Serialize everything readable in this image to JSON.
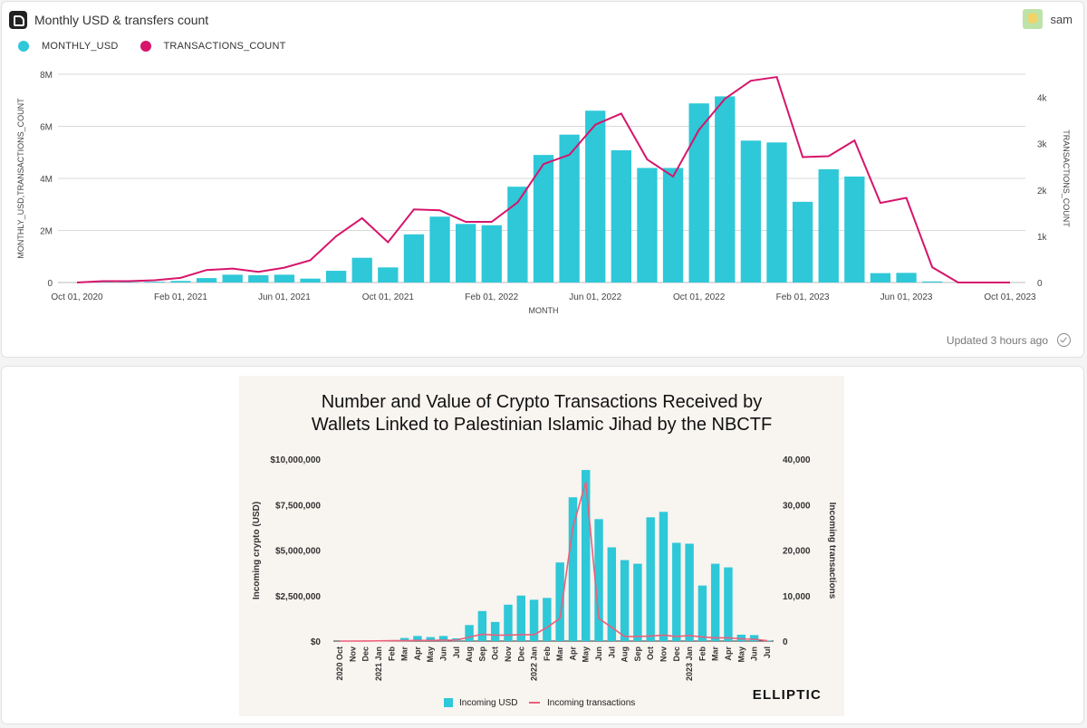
{
  "dashboard": {
    "title": "Monthly USD & transfers count",
    "user": "sam",
    "updated": "Updated 3 hours ago"
  },
  "colors": {
    "usd": "#2ec8d8",
    "tx": "#d6156b",
    "ellipticTx": "#ec5f7b",
    "ellipticBg": "#f8f4f0"
  },
  "chart_data": [
    {
      "type": "bar",
      "title": "Monthly USD & transfers count",
      "legend": [
        "MONTHLY_USD",
        "TRANSACTIONS_COUNT"
      ],
      "xlabel": "MONTH",
      "ylabel": "MONTHLY_USD,TRANSACTIONS_COUNT",
      "y2label": "TRANSACTIONS_COUNT",
      "ylim": [
        0,
        8000000
      ],
      "y2lim": [
        0,
        4500
      ],
      "yticks": [
        "0",
        "2M",
        "4M",
        "6M",
        "8M"
      ],
      "y2ticks": [
        "0",
        "1k",
        "2k",
        "3k",
        "4k"
      ],
      "xticks": [
        "Oct 01, 2020",
        "Feb 01, 2021",
        "Jun 01, 2021",
        "Oct 01, 2021",
        "Feb 01, 2022",
        "Jun 01, 2022",
        "Oct 01, 2022",
        "Feb 01, 2023",
        "Jun 01, 2023",
        "Oct 01, 2023"
      ],
      "months": [
        "2020-10",
        "2020-11",
        "2020-12",
        "2021-01",
        "2021-02",
        "2021-03",
        "2021-04",
        "2021-05",
        "2021-06",
        "2021-07",
        "2021-08",
        "2021-09",
        "2021-10",
        "2021-11",
        "2021-12",
        "2022-01",
        "2022-02",
        "2022-03",
        "2022-04",
        "2022-05",
        "2022-06",
        "2022-07",
        "2022-08",
        "2022-09",
        "2022-10",
        "2022-11",
        "2022-12",
        "2023-01",
        "2023-02",
        "2023-03",
        "2023-04",
        "2023-05",
        "2023-06",
        "2023-07",
        "2023-08",
        "2023-09",
        "2023-10"
      ],
      "series": [
        {
          "name": "MONTHLY_USD",
          "kind": "bar",
          "axis": "left",
          "values": [
            0,
            10000,
            15000,
            30000,
            60000,
            170000,
            300000,
            280000,
            300000,
            150000,
            450000,
            950000,
            580000,
            1850000,
            2530000,
            2250000,
            2200000,
            3680000,
            4900000,
            5680000,
            6600000,
            5080000,
            4400000,
            4400000,
            6880000,
            7150000,
            5450000,
            5380000,
            3100000,
            4350000,
            4070000,
            360000,
            370000,
            40000,
            0,
            0,
            0
          ]
        },
        {
          "name": "TRANSACTIONS_COUNT",
          "kind": "line",
          "axis": "right",
          "values": [
            0,
            30,
            30,
            50,
            100,
            270,
            300,
            230,
            320,
            480,
            1000,
            1390,
            870,
            1580,
            1560,
            1310,
            1310,
            1730,
            2560,
            2760,
            3410,
            3650,
            2660,
            2290,
            3300,
            3970,
            4360,
            4440,
            2710,
            2730,
            3070,
            1720,
            1830,
            330,
            0,
            0,
            0
          ]
        }
      ]
    },
    {
      "type": "bar",
      "title": "Number and Value of Crypto Transactions Received by Wallets Linked to Palestinian Islamic Jihad by the NBCTF",
      "title_lines": [
        "Number and Value of Crypto Transactions Received by",
        "Wallets Linked to Palestinian Islamic Jihad by the NBCTF"
      ],
      "legend": [
        "Incoming USD",
        "Incoming transactions"
      ],
      "brand": "ELLIPTIC",
      "ylabel": "Incoming crypto (USD)",
      "y2label": "Incoming transactions",
      "ylim": [
        0,
        10000000
      ],
      "y2lim": [
        0,
        40000
      ],
      "yticks": [
        "$0",
        "$2,500,000",
        "$5,000,000",
        "$7,500,000",
        "$10,000,000"
      ],
      "y2ticks": [
        "0",
        "10,000",
        "20,000",
        "30,000",
        "40,000"
      ],
      "categories": [
        "2020 Oct",
        "Nov",
        "Dec",
        "2021 Jan",
        "Feb",
        "Mar",
        "Apr",
        "May",
        "Jun",
        "Jul",
        "Aug",
        "Sep",
        "Oct",
        "Nov",
        "Dec",
        "2022 Jan",
        "Feb",
        "Mar",
        "Apr",
        "May",
        "Jun",
        "Jul",
        "Aug",
        "Sep",
        "Oct",
        "Nov",
        "Dec",
        "2023 Jan",
        "Feb",
        "Mar",
        "Apr",
        "May",
        "Jun",
        "Jul"
      ],
      "series": [
        {
          "name": "Incoming USD",
          "kind": "bar",
          "axis": "left",
          "values": [
            0,
            0,
            10000,
            20000,
            40000,
            170000,
            280000,
            220000,
            280000,
            150000,
            880000,
            1650000,
            1050000,
            2000000,
            2500000,
            2270000,
            2370000,
            4320000,
            7900000,
            9400000,
            6700000,
            5150000,
            4450000,
            4250000,
            6800000,
            7100000,
            5400000,
            5350000,
            3050000,
            4250000,
            4050000,
            350000,
            330000,
            30000
          ]
        },
        {
          "name": "Incoming transactions",
          "kind": "line",
          "axis": "right",
          "values": [
            0,
            0,
            20,
            50,
            80,
            100,
            150,
            150,
            200,
            200,
            900,
            1500,
            1300,
            1300,
            1400,
            1400,
            3000,
            5000,
            25000,
            35000,
            5000,
            3000,
            1000,
            1000,
            1100,
            1300,
            1000,
            1200,
            900,
            700,
            700,
            500,
            400,
            100
          ]
        }
      ]
    }
  ]
}
